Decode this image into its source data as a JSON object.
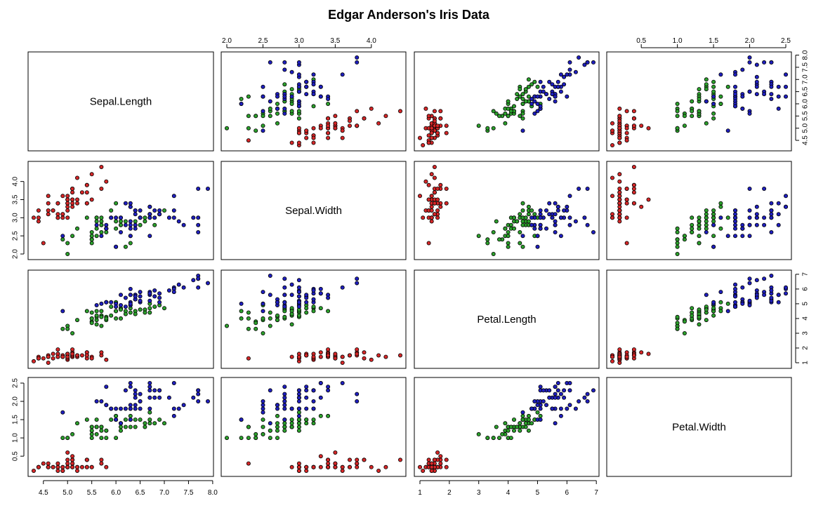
{
  "chart_data": {
    "type": "scatter",
    "title": "Edgar Anderson's Iris Data",
    "variables": [
      "Sepal.Length",
      "Sepal.Width",
      "Petal.Length",
      "Petal.Width"
    ],
    "axis_ticks": {
      "Sepal.Length": [
        "4.5",
        "5.0",
        "5.5",
        "6.0",
        "6.5",
        "7.0",
        "7.5",
        "8.0"
      ],
      "Sepal.Width": [
        "2.0",
        "2.5",
        "3.0",
        "3.5",
        "4.0"
      ],
      "Petal.Length": [
        "1",
        "2",
        "3",
        "4",
        "5",
        "6",
        "7"
      ],
      "Petal.Width": [
        "0.5",
        "1.0",
        "1.5",
        "2.0",
        "2.5"
      ]
    },
    "ranges": {
      "Sepal.Length": [
        4.3,
        7.9
      ],
      "Sepal.Width": [
        2.0,
        4.4
      ],
      "Petal.Length": [
        1.0,
        6.9
      ],
      "Petal.Width": [
        0.1,
        2.5
      ]
    },
    "series_colors": [
      "#d62728",
      "#2ca02c",
      "#1f1fbf"
    ],
    "grid": false,
    "legend": "none",
    "series": [
      {
        "values": [
          [
            5.1,
            3.5,
            1.4,
            0.2
          ],
          [
            4.9,
            3.0,
            1.4,
            0.2
          ],
          [
            4.7,
            3.2,
            1.3,
            0.2
          ],
          [
            4.6,
            3.1,
            1.5,
            0.2
          ],
          [
            5.0,
            3.6,
            1.4,
            0.2
          ],
          [
            5.4,
            3.9,
            1.7,
            0.4
          ],
          [
            4.6,
            3.4,
            1.4,
            0.3
          ],
          [
            5.0,
            3.4,
            1.5,
            0.2
          ],
          [
            4.4,
            2.9,
            1.4,
            0.2
          ],
          [
            4.9,
            3.1,
            1.5,
            0.1
          ],
          [
            5.4,
            3.7,
            1.5,
            0.2
          ],
          [
            4.8,
            3.4,
            1.6,
            0.2
          ],
          [
            4.8,
            3.0,
            1.4,
            0.1
          ],
          [
            4.3,
            3.0,
            1.1,
            0.1
          ],
          [
            5.8,
            4.0,
            1.2,
            0.2
          ],
          [
            5.7,
            4.4,
            1.5,
            0.4
          ],
          [
            5.4,
            3.9,
            1.3,
            0.4
          ],
          [
            5.1,
            3.5,
            1.4,
            0.3
          ],
          [
            5.7,
            3.8,
            1.7,
            0.3
          ],
          [
            5.1,
            3.8,
            1.5,
            0.3
          ],
          [
            5.4,
            3.4,
            1.7,
            0.2
          ],
          [
            5.1,
            3.7,
            1.5,
            0.4
          ],
          [
            4.6,
            3.6,
            1.0,
            0.2
          ],
          [
            5.1,
            3.3,
            1.7,
            0.5
          ],
          [
            4.8,
            3.4,
            1.9,
            0.2
          ],
          [
            5.0,
            3.0,
            1.6,
            0.2
          ],
          [
            5.0,
            3.4,
            1.6,
            0.4
          ],
          [
            5.2,
            3.5,
            1.5,
            0.2
          ],
          [
            5.2,
            3.4,
            1.4,
            0.2
          ],
          [
            4.7,
            3.2,
            1.6,
            0.2
          ],
          [
            4.8,
            3.1,
            1.6,
            0.2
          ],
          [
            5.4,
            3.4,
            1.5,
            0.4
          ],
          [
            5.2,
            4.1,
            1.5,
            0.1
          ],
          [
            5.5,
            4.2,
            1.4,
            0.2
          ],
          [
            4.9,
            3.1,
            1.5,
            0.2
          ],
          [
            5.0,
            3.2,
            1.2,
            0.2
          ],
          [
            5.5,
            3.5,
            1.3,
            0.2
          ],
          [
            4.9,
            3.6,
            1.4,
            0.1
          ],
          [
            4.4,
            3.0,
            1.3,
            0.2
          ],
          [
            5.1,
            3.4,
            1.5,
            0.2
          ],
          [
            5.0,
            3.5,
            1.3,
            0.3
          ],
          [
            4.5,
            2.3,
            1.3,
            0.3
          ],
          [
            4.4,
            3.2,
            1.3,
            0.2
          ],
          [
            5.0,
            3.5,
            1.6,
            0.6
          ],
          [
            5.1,
            3.8,
            1.9,
            0.4
          ],
          [
            4.8,
            3.0,
            1.4,
            0.3
          ],
          [
            5.1,
            3.8,
            1.6,
            0.2
          ],
          [
            4.6,
            3.2,
            1.4,
            0.2
          ],
          [
            5.3,
            3.7,
            1.5,
            0.2
          ],
          [
            5.0,
            3.3,
            1.4,
            0.2
          ]
        ]
      },
      {
        "values": [
          [
            7.0,
            3.2,
            4.7,
            1.4
          ],
          [
            6.4,
            3.2,
            4.5,
            1.5
          ],
          [
            6.9,
            3.1,
            4.9,
            1.5
          ],
          [
            5.5,
            2.3,
            4.0,
            1.3
          ],
          [
            6.5,
            2.8,
            4.6,
            1.5
          ],
          [
            5.7,
            2.8,
            4.5,
            1.3
          ],
          [
            6.3,
            3.3,
            4.7,
            1.6
          ],
          [
            4.9,
            2.4,
            3.3,
            1.0
          ],
          [
            6.6,
            2.9,
            4.6,
            1.3
          ],
          [
            5.2,
            2.7,
            3.9,
            1.4
          ],
          [
            5.0,
            2.0,
            3.5,
            1.0
          ],
          [
            5.9,
            3.0,
            4.2,
            1.5
          ],
          [
            6.0,
            2.2,
            4.0,
            1.0
          ],
          [
            6.1,
            2.9,
            4.7,
            1.4
          ],
          [
            5.6,
            2.9,
            3.6,
            1.3
          ],
          [
            6.7,
            3.1,
            4.4,
            1.4
          ],
          [
            5.6,
            3.0,
            4.5,
            1.5
          ],
          [
            5.8,
            2.7,
            4.1,
            1.0
          ],
          [
            6.2,
            2.2,
            4.5,
            1.5
          ],
          [
            5.6,
            2.5,
            3.9,
            1.1
          ],
          [
            5.9,
            3.2,
            4.8,
            1.8
          ],
          [
            6.1,
            2.8,
            4.0,
            1.3
          ],
          [
            6.3,
            2.5,
            4.9,
            1.5
          ],
          [
            6.1,
            2.8,
            4.7,
            1.2
          ],
          [
            6.4,
            2.9,
            4.3,
            1.3
          ],
          [
            6.6,
            3.0,
            4.4,
            1.4
          ],
          [
            6.8,
            2.8,
            4.8,
            1.4
          ],
          [
            6.7,
            3.0,
            5.0,
            1.7
          ],
          [
            6.0,
            2.9,
            4.5,
            1.5
          ],
          [
            5.7,
            2.6,
            3.5,
            1.0
          ],
          [
            5.5,
            2.4,
            3.8,
            1.1
          ],
          [
            5.5,
            2.4,
            3.7,
            1.0
          ],
          [
            5.8,
            2.7,
            3.9,
            1.2
          ],
          [
            6.0,
            2.7,
            5.1,
            1.6
          ],
          [
            5.4,
            3.0,
            4.5,
            1.5
          ],
          [
            6.0,
            3.4,
            4.5,
            1.6
          ],
          [
            6.7,
            3.1,
            4.7,
            1.5
          ],
          [
            6.3,
            2.3,
            4.4,
            1.3
          ],
          [
            5.6,
            3.0,
            4.1,
            1.3
          ],
          [
            5.5,
            2.5,
            4.0,
            1.3
          ],
          [
            5.5,
            2.6,
            4.4,
            1.2
          ],
          [
            6.1,
            3.0,
            4.6,
            1.4
          ],
          [
            5.8,
            2.6,
            4.0,
            1.2
          ],
          [
            5.0,
            2.3,
            3.3,
            1.0
          ],
          [
            5.6,
            2.7,
            4.2,
            1.3
          ],
          [
            5.7,
            3.0,
            4.2,
            1.2
          ],
          [
            5.7,
            2.9,
            4.2,
            1.3
          ],
          [
            6.2,
            2.9,
            4.3,
            1.3
          ],
          [
            5.1,
            2.5,
            3.0,
            1.1
          ],
          [
            5.7,
            2.8,
            4.1,
            1.3
          ]
        ]
      },
      {
        "values": [
          [
            6.3,
            3.3,
            6.0,
            2.5
          ],
          [
            5.8,
            2.7,
            5.1,
            1.9
          ],
          [
            7.1,
            3.0,
            5.9,
            2.1
          ],
          [
            6.3,
            2.9,
            5.6,
            1.8
          ],
          [
            6.5,
            3.0,
            5.8,
            2.2
          ],
          [
            7.6,
            3.0,
            6.6,
            2.1
          ],
          [
            4.9,
            2.5,
            4.5,
            1.7
          ],
          [
            7.3,
            2.9,
            6.3,
            1.8
          ],
          [
            6.7,
            2.5,
            5.8,
            1.8
          ],
          [
            7.2,
            3.6,
            6.1,
            2.5
          ],
          [
            6.5,
            3.2,
            5.1,
            2.0
          ],
          [
            6.4,
            2.7,
            5.3,
            1.9
          ],
          [
            6.8,
            3.0,
            5.5,
            2.1
          ],
          [
            5.7,
            2.5,
            5.0,
            2.0
          ],
          [
            5.8,
            2.8,
            5.1,
            2.4
          ],
          [
            6.4,
            3.2,
            5.3,
            2.3
          ],
          [
            6.5,
            3.0,
            5.5,
            1.8
          ],
          [
            7.7,
            3.8,
            6.7,
            2.2
          ],
          [
            7.7,
            2.6,
            6.9,
            2.3
          ],
          [
            6.0,
            2.2,
            5.0,
            1.5
          ],
          [
            6.9,
            3.2,
            5.7,
            2.3
          ],
          [
            5.6,
            2.8,
            4.9,
            2.0
          ],
          [
            7.7,
            2.8,
            6.7,
            2.0
          ],
          [
            6.3,
            2.7,
            4.9,
            1.8
          ],
          [
            6.7,
            3.3,
            5.7,
            2.1
          ],
          [
            7.2,
            3.2,
            6.0,
            1.8
          ],
          [
            6.2,
            2.8,
            4.8,
            1.8
          ],
          [
            6.1,
            3.0,
            4.9,
            1.8
          ],
          [
            6.4,
            2.8,
            5.6,
            2.1
          ],
          [
            7.2,
            3.0,
            5.8,
            1.6
          ],
          [
            7.4,
            2.8,
            6.1,
            1.9
          ],
          [
            7.9,
            3.8,
            6.4,
            2.0
          ],
          [
            6.4,
            2.8,
            5.6,
            2.2
          ],
          [
            6.3,
            2.8,
            5.1,
            1.5
          ],
          [
            6.1,
            2.6,
            5.6,
            1.4
          ],
          [
            7.7,
            3.0,
            6.1,
            2.3
          ],
          [
            6.3,
            3.4,
            5.6,
            2.4
          ],
          [
            6.4,
            3.1,
            5.5,
            1.8
          ],
          [
            6.0,
            3.0,
            4.8,
            1.8
          ],
          [
            6.9,
            3.1,
            5.4,
            2.1
          ],
          [
            6.7,
            3.1,
            5.6,
            2.4
          ],
          [
            6.9,
            3.1,
            5.1,
            2.3
          ],
          [
            5.8,
            2.7,
            5.1,
            1.9
          ],
          [
            6.8,
            3.2,
            5.9,
            2.3
          ],
          [
            6.7,
            3.3,
            5.7,
            2.5
          ],
          [
            6.7,
            3.0,
            5.2,
            2.3
          ],
          [
            6.3,
            2.5,
            5.0,
            1.9
          ],
          [
            6.5,
            3.0,
            5.2,
            2.0
          ],
          [
            6.2,
            3.4,
            5.4,
            2.3
          ],
          [
            5.9,
            3.0,
            5.1,
            1.8
          ]
        ]
      }
    ]
  }
}
